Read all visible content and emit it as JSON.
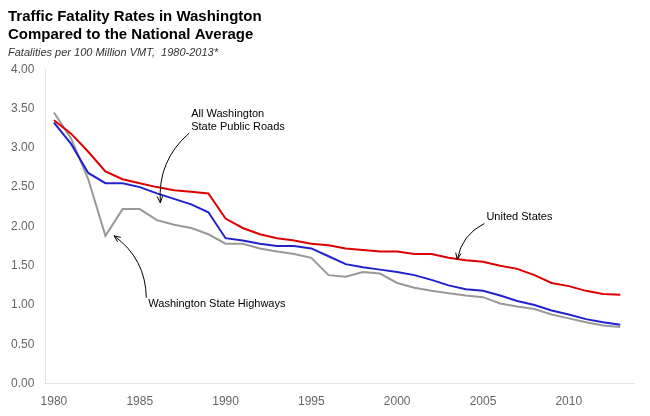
{
  "chart_data": {
    "type": "line",
    "title": "Traffic Fatality Rates in Washington\nCompared to the National Average",
    "subtitle": "Fatalities per 100 Million VMT,  1980-2013*",
    "x": [
      1980,
      1981,
      1982,
      1983,
      1984,
      1985,
      1986,
      1987,
      1988,
      1989,
      1990,
      1991,
      1992,
      1993,
      1994,
      1995,
      1996,
      1997,
      1998,
      1999,
      2000,
      2001,
      2002,
      2003,
      2004,
      2005,
      2006,
      2007,
      2008,
      2009,
      2010,
      2011,
      2012,
      2013
    ],
    "series": [
      {
        "color": "#999999",
        "values": [
          3.45,
          3.12,
          2.6,
          1.88,
          2.22,
          2.22,
          2.08,
          2.02,
          1.98,
          1.9,
          1.78,
          1.78,
          1.72,
          1.68,
          1.65,
          1.6,
          1.38,
          1.36,
          1.42,
          1.4,
          1.28,
          1.22,
          1.18,
          1.15,
          1.12,
          1.1,
          1.02,
          0.98,
          0.95,
          0.88,
          0.83,
          0.78,
          0.74,
          0.72
        ]
      },
      {
        "color": "#2222cc",
        "values": [
          3.32,
          3.05,
          2.68,
          2.55,
          2.55,
          2.5,
          2.42,
          2.35,
          2.28,
          2.18,
          1.85,
          1.82,
          1.78,
          1.75,
          1.75,
          1.72,
          1.62,
          1.52,
          1.48,
          1.45,
          1.42,
          1.38,
          1.32,
          1.25,
          1.2,
          1.18,
          1.12,
          1.05,
          1.0,
          0.93,
          0.88,
          0.82,
          0.78,
          0.75
        ]
      },
      {
        "color": "#dd0000",
        "values": [
          3.35,
          3.18,
          2.95,
          2.7,
          2.6,
          2.55,
          2.5,
          2.46,
          2.44,
          2.42,
          2.1,
          1.98,
          1.9,
          1.85,
          1.82,
          1.78,
          1.76,
          1.72,
          1.7,
          1.68,
          1.68,
          1.65,
          1.65,
          1.6,
          1.57,
          1.55,
          1.5,
          1.46,
          1.38,
          1.28,
          1.24,
          1.18,
          1.14,
          1.13
        ]
      }
    ],
    "xlim": [
      1979.5,
      2013.8
    ],
    "xticks": [
      1980,
      1985,
      1990,
      1995,
      2000,
      2005,
      2010
    ],
    "ylim": [
      0.0,
      4.0
    ],
    "yticks": [
      {
        "value": 0.0,
        "label": "0.00"
      },
      {
        "value": 0.5,
        "label": "0.50"
      },
      {
        "value": 1.0,
        "label": "1.00"
      },
      {
        "value": 1.5,
        "label": "1.50"
      },
      {
        "value": 2.0,
        "label": "2.00"
      },
      {
        "value": 2.5,
        "label": "2.50"
      },
      {
        "value": 3.0,
        "label": "3.00"
      },
      {
        "value": 3.5,
        "label": "3.50"
      },
      {
        "value": 4.0,
        "label": "4.00"
      }
    ],
    "grid": false,
    "annotations": [
      {
        "text": "All Washington\nState Public Roads",
        "x": 1986.2,
        "y": 2.3,
        "text_x": 1988.0,
        "text_y": 3.2
      },
      {
        "text": "Washington State Highways",
        "x": 1983.5,
        "y": 1.88,
        "text_x": 1985.5,
        "text_y": 1.08
      },
      {
        "text": "United States",
        "x": 2003.5,
        "y": 1.58,
        "text_x": 2005.2,
        "text_y": 2.05
      }
    ]
  }
}
